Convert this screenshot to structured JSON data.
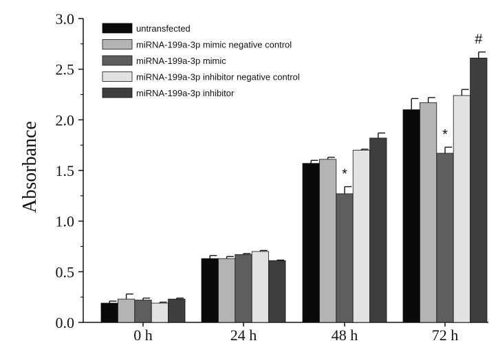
{
  "chart_data": {
    "type": "bar",
    "title": "",
    "xlabel": "",
    "ylabel": "Absorbance",
    "ylim": [
      0,
      3.0
    ],
    "yticks": [
      "0.0",
      "0.5",
      "1.0",
      "1.5",
      "2.0",
      "2.5",
      "3.0"
    ],
    "categories": [
      "0 h",
      "24 h",
      "48 h",
      "72 h"
    ],
    "legend_position": "top-left",
    "series": [
      {
        "name": "untransfected",
        "color": "#0a0a0a",
        "values": [
          0.19,
          0.63,
          1.57,
          2.1
        ],
        "errors": [
          0.02,
          0.03,
          0.03,
          0.11
        ]
      },
      {
        "name": "miRNA-199a-3p mimic negative control",
        "color": "#b4b4b4",
        "values": [
          0.23,
          0.63,
          1.61,
          2.17
        ],
        "errors": [
          0.05,
          0.02,
          0.02,
          0.05
        ]
      },
      {
        "name": "miRNA-199a-3p mimic",
        "color": "#5e5e5e",
        "values": [
          0.22,
          0.67,
          1.27,
          1.67
        ],
        "errors": [
          0.02,
          0.01,
          0.07,
          0.06
        ]
      },
      {
        "name": "miRNA-199a-3p inhibitor negative control",
        "color": "#e2e2e2",
        "values": [
          0.19,
          0.7,
          1.7,
          2.24
        ],
        "errors": [
          0.01,
          0.01,
          0.01,
          0.06
        ]
      },
      {
        "name": "miRNA-199a-3p inhibitor",
        "color": "#3e3e3e",
        "values": [
          0.23,
          0.61,
          1.82,
          2.61
        ],
        "errors": [
          0.01,
          0.005,
          0.05,
          0.06
        ]
      }
    ],
    "annotations": [
      {
        "text": "*",
        "category": "48 h",
        "series_index": 2
      },
      {
        "text": "*",
        "category": "72 h",
        "series_index": 2
      },
      {
        "text": "#",
        "category": "72 h",
        "series_index": 4
      }
    ]
  }
}
